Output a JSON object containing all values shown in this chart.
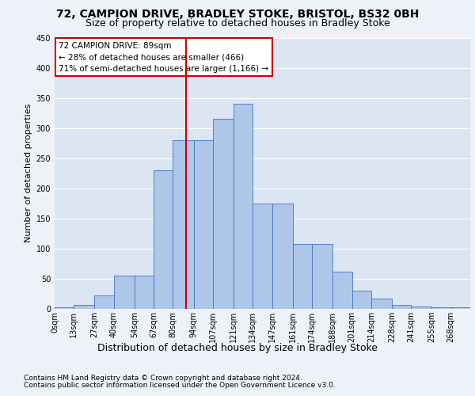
{
  "title1": "72, CAMPION DRIVE, BRADLEY STOKE, BRISTOL, BS32 0BH",
  "title2": "Size of property relative to detached houses in Bradley Stoke",
  "xlabel": "Distribution of detached houses by size in Bradley Stoke",
  "ylabel": "Number of detached properties",
  "footnote1": "Contains HM Land Registry data © Crown copyright and database right 2024.",
  "footnote2": "Contains public sector information licensed under the Open Government Licence v3.0.",
  "annotation_line1": "72 CAMPION DRIVE: 89sqm",
  "annotation_line2": "← 28% of detached houses are smaller (466)",
  "annotation_line3": "71% of semi-detached houses are larger (1,166) →",
  "bin_labels": [
    "0sqm",
    "13sqm",
    "27sqm",
    "40sqm",
    "54sqm",
    "67sqm",
    "80sqm",
    "94sqm",
    "107sqm",
    "121sqm",
    "134sqm",
    "147sqm",
    "161sqm",
    "174sqm",
    "188sqm",
    "201sqm",
    "214sqm",
    "228sqm",
    "241sqm",
    "255sqm",
    "268sqm"
  ],
  "bin_edges": [
    0,
    13,
    27,
    40,
    54,
    67,
    80,
    94,
    107,
    121,
    134,
    147,
    161,
    174,
    188,
    201,
    214,
    228,
    241,
    255,
    268
  ],
  "bar_heights": [
    2,
    6,
    22,
    55,
    55,
    230,
    280,
    280,
    315,
    340,
    175,
    175,
    108,
    108,
    62,
    30,
    17,
    6,
    4,
    3,
    2
  ],
  "bar_color": "#aec6e8",
  "bar_edge_color": "#4472c4",
  "vline_x": 89,
  "vline_color": "#cc0000",
  "ylim": [
    0,
    450
  ],
  "yticks": [
    0,
    50,
    100,
    150,
    200,
    250,
    300,
    350,
    400,
    450
  ],
  "background_color": "#eef2f8",
  "plot_bg_color": "#dce6f2",
  "grid_color": "#ffffff",
  "annotation_box_color": "#ffffff",
  "annotation_border_color": "#cc0000",
  "title1_fontsize": 10,
  "title2_fontsize": 9,
  "ylabel_fontsize": 8,
  "xlabel_fontsize": 9,
  "tick_fontsize": 7,
  "footnote_fontsize": 6.5
}
